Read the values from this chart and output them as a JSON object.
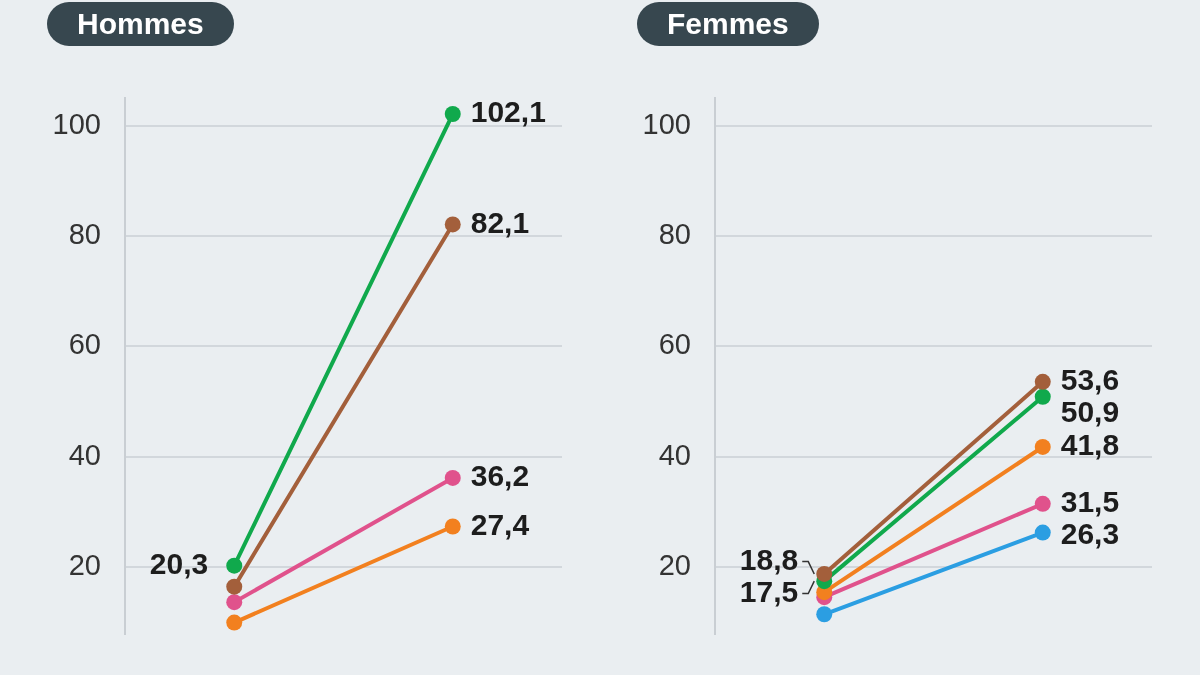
{
  "chart_data": [
    {
      "type": "line",
      "title": "Hommes",
      "categories": [
        null,
        null
      ],
      "marker": "circle",
      "grid": "y",
      "ylim": [
        8,
        105
      ],
      "yticks": [
        20,
        40,
        60,
        80,
        100
      ],
      "series": [
        {
          "color": "#10a94c",
          "values": [
            20.3,
            102.1
          ],
          "value_labels": [
            "20,3",
            "102,1"
          ]
        },
        {
          "color": "#a35f3b",
          "values": [
            16.5,
            82.1
          ],
          "value_labels": [
            null,
            "82,1"
          ]
        },
        {
          "color": "#e0528c",
          "values": [
            13.7,
            36.2
          ],
          "value_labels": [
            null,
            "36,2"
          ]
        },
        {
          "color": "#f2801f",
          "values": [
            10.0,
            27.4
          ],
          "value_labels": [
            null,
            "27,4"
          ]
        }
      ]
    },
    {
      "type": "line",
      "title": "Femmes",
      "categories": [
        null,
        null
      ],
      "marker": "circle",
      "grid": "y",
      "ylim": [
        8,
        105
      ],
      "yticks": [
        20,
        40,
        60,
        80,
        100
      ],
      "series": [
        {
          "color": "#a35f3b",
          "values": [
            18.8,
            53.6
          ],
          "value_labels": [
            "18,8",
            "53,6"
          ]
        },
        {
          "color": "#10a94c",
          "values": [
            17.5,
            50.9
          ],
          "value_labels": [
            "17,5",
            "50,9"
          ]
        },
        {
          "color": "#f2801f",
          "values": [
            15.5,
            41.8
          ],
          "value_labels": [
            null,
            "41,8"
          ]
        },
        {
          "color": "#e0528c",
          "values": [
            14.6,
            31.5
          ],
          "value_labels": [
            null,
            "31,5"
          ]
        },
        {
          "color": "#2b9ee2",
          "values": [
            11.5,
            26.3
          ],
          "value_labels": [
            null,
            "26,3"
          ]
        }
      ]
    }
  ]
}
